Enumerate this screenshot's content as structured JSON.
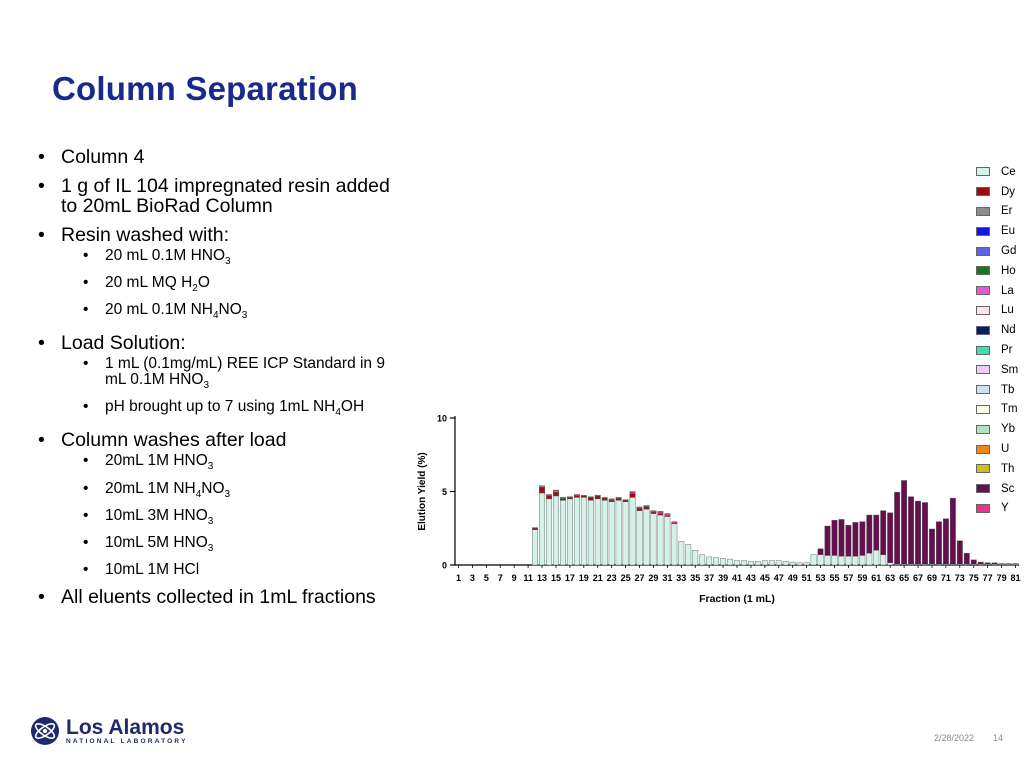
{
  "slide": {
    "title": "Column Separation",
    "date": "2/28/2022",
    "page": "14",
    "logo_name": "Los Alamos",
    "logo_sub": "NATIONAL LABORATORY"
  },
  "bullets": {
    "b1": "Column 4",
    "b2": "1 g of IL 104 impregnated resin added to 20mL BioRad Column",
    "b3": "Resin washed with:",
    "b3_1_a": "20 mL 0.1M HNO",
    "b3_1_sub": "3",
    "b3_2_a": "20 mL MQ H",
    "b3_2_sub": "2",
    "b3_2_b": "O",
    "b3_3_a": "20 mL 0.1M NH",
    "b3_3_sub1": "4",
    "b3_3_b": "NO",
    "b3_3_sub2": "3",
    "b4": "Load Solution:",
    "b4_1_a": "1 mL (0.1mg/mL) REE ICP Standard in 9 mL 0.1M HNO",
    "b4_1_sub": "3",
    "b4_2_a": "pH brought up to 7 using 1mL NH",
    "b4_2_sub": "4",
    "b4_2_b": "OH",
    "b5": "Column washes after load",
    "b5_1_a": "20mL 1M HNO",
    "b5_1_sub": "3",
    "b5_2_a": "20mL 1M NH",
    "b5_2_sub1": "4",
    "b5_2_b": "NO",
    "b5_2_sub2": "3",
    "b5_3_a": "10mL 3M HNO",
    "b5_3_sub": "3",
    "b5_4_a": "10mL 5M HNO",
    "b5_4_sub": "3",
    "b5_5": "10mL 1M HCl",
    "b6": "All eluents collected in 1mL fractions"
  },
  "chart_data": {
    "type": "bar",
    "xlabel": "Fraction (1 mL)",
    "ylabel": "Elution Yield (%)",
    "ylim": [
      0,
      10
    ],
    "yticks": [
      0,
      5,
      10
    ],
    "x": [
      1,
      2,
      3,
      4,
      5,
      6,
      7,
      8,
      9,
      10,
      11,
      12,
      13,
      14,
      15,
      16,
      17,
      18,
      19,
      20,
      21,
      22,
      23,
      24,
      25,
      26,
      27,
      28,
      29,
      30,
      31,
      32,
      33,
      34,
      35,
      36,
      37,
      38,
      39,
      40,
      41,
      42,
      43,
      44,
      45,
      46,
      47,
      48,
      49,
      50,
      51,
      52,
      53,
      54,
      55,
      56,
      57,
      58,
      59,
      60,
      61,
      62,
      63,
      64,
      65,
      66,
      67,
      68,
      69,
      70,
      71,
      72,
      73,
      74,
      75,
      76,
      77,
      78,
      79,
      80,
      81
    ],
    "xticks": [
      1,
      3,
      5,
      7,
      9,
      11,
      13,
      15,
      17,
      19,
      21,
      23,
      25,
      27,
      29,
      31,
      33,
      35,
      37,
      39,
      41,
      43,
      45,
      47,
      49,
      51,
      53,
      55,
      57,
      59,
      61,
      63,
      65,
      67,
      69,
      71,
      73,
      75,
      77,
      79,
      81
    ],
    "legend_position": "right",
    "grid": false,
    "series": [
      {
        "name": "Ce",
        "color": "#d4f2ea",
        "values": [
          0,
          0,
          0,
          0,
          0,
          0,
          0,
          0,
          0,
          0,
          0,
          2.4,
          4.9,
          4.5,
          4.7,
          4.4,
          4.5,
          4.6,
          4.6,
          4.4,
          4.5,
          4.4,
          4.3,
          4.4,
          4.3,
          4.6,
          3.7,
          3.8,
          3.5,
          3.4,
          3.3,
          2.8,
          1.6,
          1.4,
          1.0,
          0.7,
          0.55,
          0.5,
          0.45,
          0.4,
          0.3,
          0.3,
          0.25,
          0.25,
          0.3,
          0.3,
          0.3,
          0.25,
          0.2,
          0.15,
          0.15,
          0.7,
          0.7,
          0.65,
          0.65,
          0.6,
          0.6,
          0.6,
          0.65,
          0.8,
          1.0,
          0.7,
          0.15,
          0.05,
          0.05,
          0.05,
          0.05,
          0.05,
          0.05,
          0.05,
          0.05,
          0.05,
          0.05,
          0.05,
          0.05,
          0.05,
          0.05,
          0.05,
          0.05,
          0.05,
          0.05
        ]
      },
      {
        "name": "Dy",
        "color": "#9b0d14",
        "values": [
          0,
          0,
          0,
          0,
          0,
          0,
          0,
          0,
          0,
          0,
          0,
          0.1,
          0.4,
          0.2,
          0.25,
          0.1,
          0.1,
          0.1,
          0.1,
          0.2,
          0.2,
          0.15,
          0.1,
          0.15,
          0.1,
          0.25,
          0.15,
          0.15,
          0.1,
          0.1,
          0.05,
          0.05,
          0,
          0,
          0,
          0,
          0,
          0,
          0,
          0,
          0,
          0,
          0,
          0,
          0,
          0,
          0,
          0,
          0,
          0,
          0,
          0,
          0,
          0,
          0,
          0,
          0,
          0,
          0,
          0,
          0,
          0,
          0,
          0,
          0,
          0,
          0,
          0,
          0,
          0,
          0,
          0,
          0,
          0,
          0,
          0,
          0,
          0,
          0,
          0,
          0
        ]
      },
      {
        "name": "Er",
        "color": "#8c8c8c",
        "values": [
          0,
          0,
          0,
          0,
          0,
          0,
          0,
          0,
          0,
          0,
          0,
          0.05,
          0.1,
          0.05,
          0.1,
          0.05,
          0.05,
          0.05,
          0.05,
          0.05,
          0.05,
          0.05,
          0.05,
          0.05,
          0.05,
          0.05,
          0.05,
          0.05,
          0.05,
          0.05,
          0.05,
          0,
          0,
          0,
          0,
          0,
          0,
          0,
          0,
          0,
          0,
          0,
          0,
          0,
          0,
          0,
          0,
          0,
          0,
          0,
          0,
          0,
          0,
          0,
          0,
          0,
          0,
          0,
          0,
          0,
          0,
          0,
          0,
          0,
          0,
          0,
          0,
          0,
          0,
          0,
          0,
          0,
          0,
          0,
          0,
          0,
          0,
          0,
          0,
          0,
          0
        ]
      },
      {
        "name": "Sc",
        "color": "#64104f",
        "values": [
          0,
          0,
          0,
          0,
          0,
          0,
          0,
          0,
          0,
          0,
          0,
          0,
          0,
          0,
          0,
          0,
          0,
          0,
          0,
          0,
          0,
          0,
          0,
          0,
          0,
          0,
          0,
          0,
          0,
          0,
          0,
          0,
          0,
          0,
          0,
          0,
          0,
          0,
          0,
          0,
          0,
          0,
          0,
          0,
          0,
          0,
          0,
          0,
          0,
          0,
          0,
          0,
          0.4,
          2.0,
          2.4,
          2.5,
          2.1,
          2.3,
          2.3,
          2.6,
          2.4,
          3.0,
          3.4,
          4.9,
          5.7,
          4.6,
          4.3,
          4.2,
          2.4,
          2.9,
          3.1,
          4.5,
          1.6,
          0.75,
          0.3,
          0.15,
          0.1,
          0.1,
          0.05,
          0.05,
          0.05
        ]
      },
      {
        "name": "Y",
        "color": "#e8338a",
        "values": [
          0,
          0,
          0,
          0,
          0,
          0,
          0,
          0,
          0,
          0,
          0,
          0,
          0,
          0.05,
          0.05,
          0.05,
          0,
          0.05,
          0,
          0,
          0,
          0,
          0.05,
          0,
          0,
          0.1,
          0.05,
          0.05,
          0.05,
          0.1,
          0.1,
          0.1,
          0,
          0,
          0,
          0,
          0,
          0,
          0,
          0,
          0,
          0,
          0,
          0,
          0,
          0,
          0,
          0,
          0,
          0,
          0,
          0,
          0,
          0,
          0,
          0,
          0,
          0,
          0,
          0,
          0,
          0,
          0,
          0,
          0,
          0,
          0,
          0,
          0,
          0,
          0,
          0,
          0,
          0,
          0,
          0,
          0,
          0,
          0,
          0,
          0
        ]
      }
    ],
    "legend": [
      {
        "name": "Ce",
        "color": "#d4f2ea"
      },
      {
        "name": "Dy",
        "color": "#9b0d14"
      },
      {
        "name": "Er",
        "color": "#8c8c8c"
      },
      {
        "name": "Eu",
        "color": "#1118e6"
      },
      {
        "name": "Gd",
        "color": "#5b63e0"
      },
      {
        "name": "Ho",
        "color": "#17791f"
      },
      {
        "name": "La",
        "color": "#e05ad2"
      },
      {
        "name": "Lu",
        "color": "#fbe4e7"
      },
      {
        "name": "Nd",
        "color": "#0a1a73"
      },
      {
        "name": "Pr",
        "color": "#39e0a8"
      },
      {
        "name": "Sm",
        "color": "#ecd0f0"
      },
      {
        "name": "Tb",
        "color": "#cfe0f5"
      },
      {
        "name": "Tm",
        "color": "#fdfde8"
      },
      {
        "name": "Yb",
        "color": "#b6e0c2"
      },
      {
        "name": "U",
        "color": "#f08519"
      },
      {
        "name": "Th",
        "color": "#c7c216"
      },
      {
        "name": "Sc",
        "color": "#64104f"
      },
      {
        "name": "Y",
        "color": "#e8338a"
      }
    ]
  }
}
